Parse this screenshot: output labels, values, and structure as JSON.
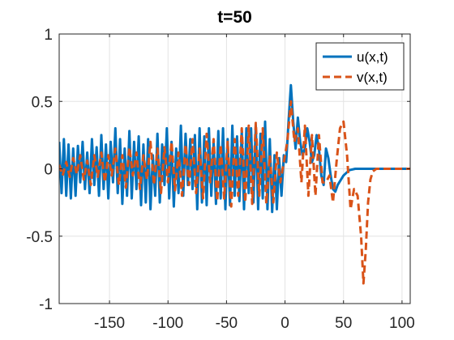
{
  "chart_data": {
    "type": "line",
    "title": "t=50",
    "xlabel": "",
    "ylabel": "",
    "xlim": [
      -193,
      107
    ],
    "ylim": [
      -1,
      1
    ],
    "x_ticks": [
      -150,
      -100,
      -50,
      0,
      50,
      100
    ],
    "x_tick_labels": [
      "-150",
      "-100",
      "-50",
      "0",
      "50",
      "100"
    ],
    "y_ticks": [
      1,
      0.5,
      0,
      -0.5,
      -1
    ],
    "y_tick_labels": [
      "1",
      "0.5",
      "0",
      "-0.5",
      "-1"
    ],
    "grid": true,
    "legend_position": "top-right",
    "series": [
      {
        "name": "u(x,t)",
        "color": "#0072BD",
        "style": "solid",
        "x": [
          -193,
          -191,
          -189,
          -187,
          -185,
          -183,
          -181,
          -179,
          -177,
          -175,
          -173,
          -171,
          -169,
          -167,
          -165,
          -163,
          -161,
          -159,
          -157,
          -155,
          -153,
          -151,
          -149,
          -147,
          -145,
          -143,
          -141,
          -139,
          -137,
          -135,
          -133,
          -131,
          -129,
          -127,
          -125,
          -123,
          -121,
          -119,
          -117,
          -115,
          -113,
          -111,
          -109,
          -107,
          -105,
          -103,
          -101,
          -99,
          -97,
          -95,
          -93,
          -91,
          -89,
          -87,
          -85,
          -83,
          -81,
          -79,
          -77,
          -75,
          -73,
          -71,
          -69,
          -67,
          -65,
          -63,
          -61,
          -59,
          -57,
          -55,
          -53,
          -51,
          -49,
          -47,
          -45,
          -43,
          -41,
          -39,
          -37,
          -35,
          -33,
          -31,
          -29,
          -27,
          -25,
          -23,
          -21,
          -19,
          -17,
          -15,
          -13,
          -11,
          -9,
          -7,
          -5,
          -3,
          -1,
          1,
          3,
          5,
          7,
          9,
          11,
          13,
          15,
          17,
          19,
          21,
          23,
          25,
          27,
          29,
          31,
          33,
          35,
          37,
          39,
          41,
          43,
          45,
          50,
          55,
          60,
          65,
          70,
          80,
          90,
          100,
          107
        ],
        "y": [
          0.2,
          -0.18,
          0.22,
          -0.2,
          0.18,
          -0.22,
          0.15,
          -0.2,
          0.17,
          -0.1,
          0.2,
          -0.15,
          0.12,
          -0.18,
          0.22,
          -0.12,
          0.16,
          -0.2,
          0.25,
          -0.15,
          0.18,
          -0.22,
          0.2,
          -0.1,
          0.3,
          -0.18,
          0.22,
          -0.26,
          0.15,
          -0.2,
          0.28,
          -0.22,
          0.2,
          -0.15,
          0.24,
          -0.27,
          0.18,
          -0.25,
          0.22,
          -0.3,
          0.1,
          -0.2,
          0.26,
          -0.25,
          0.18,
          -0.12,
          0.3,
          -0.22,
          0.2,
          -0.28,
          0.15,
          -0.18,
          0.32,
          -0.2,
          0.26,
          -0.12,
          0.22,
          -0.15,
          0.25,
          -0.3,
          0.3,
          -0.25,
          0.24,
          -0.27,
          0.3,
          -0.2,
          0.2,
          -0.26,
          0.28,
          -0.22,
          0.3,
          -0.3,
          0.22,
          -0.27,
          0.32,
          -0.2,
          0.24,
          -0.24,
          0.28,
          -0.3,
          0.3,
          -0.18,
          0.3,
          -0.25,
          0.32,
          -0.3,
          0.26,
          -0.22,
          0.35,
          -0.3,
          0.22,
          -0.32,
          0.1,
          -0.3,
          0.08,
          -0.2,
          0.1,
          0.05,
          0.35,
          0.62,
          0.35,
          0.15,
          0.38,
          0.2,
          0.1,
          0.15,
          0.3,
          0.2,
          0.05,
          0.1,
          0.25,
          0.15,
          -0.05,
          -0.12,
          0.15,
          0.08,
          -0.05,
          -0.15,
          -0.17,
          -0.12,
          -0.05,
          -0.01,
          0,
          0,
          0,
          0,
          0,
          0,
          0
        ]
      },
      {
        "name": "v(x,t)",
        "color": "#D95319",
        "style": "dashed",
        "x": [
          -193,
          -190,
          -187,
          -184,
          -181,
          -178,
          -175,
          -172,
          -169,
          -166,
          -163,
          -160,
          -157,
          -154,
          -151,
          -148,
          -145,
          -142,
          -139,
          -136,
          -133,
          -130,
          -127,
          -124,
          -121,
          -118,
          -115,
          -112,
          -109,
          -106,
          -103,
          -100,
          -97,
          -94,
          -91,
          -88,
          -85,
          -82,
          -79,
          -76,
          -73,
          -70,
          -67,
          -64,
          -61,
          -58,
          -55,
          -52,
          -49,
          -46,
          -43,
          -40,
          -37,
          -34,
          -31,
          -28,
          -25,
          -22,
          -19,
          -16,
          -13,
          -10,
          -7,
          -4,
          -1,
          2,
          5,
          8,
          11,
          14,
          17,
          20,
          23,
          26,
          29,
          32,
          35,
          38,
          41,
          44,
          47,
          50,
          53,
          56,
          59,
          62,
          65,
          67,
          69,
          71,
          73,
          75,
          78,
          82,
          90,
          100,
          107
        ],
        "y": [
          0.03,
          -0.05,
          0.05,
          -0.06,
          0.08,
          -0.04,
          0.1,
          -0.08,
          0.06,
          -0.12,
          0.1,
          -0.06,
          0.12,
          -0.1,
          0.1,
          -0.05,
          0.15,
          -0.12,
          0.1,
          -0.14,
          0.16,
          -0.05,
          0.12,
          -0.15,
          0.1,
          -0.08,
          0.2,
          -0.12,
          0.15,
          -0.18,
          0.16,
          -0.1,
          0.2,
          -0.16,
          0.12,
          -0.2,
          0.18,
          -0.12,
          0.22,
          -0.18,
          0.15,
          -0.22,
          0.26,
          -0.1,
          0.22,
          -0.24,
          0.18,
          -0.22,
          0.2,
          -0.28,
          0.22,
          -0.2,
          0.3,
          -0.25,
          0.32,
          -0.26,
          0.34,
          -0.2,
          0.3,
          -0.26,
          0.1,
          -0.25,
          0.12,
          -0.1,
          0.05,
          0.2,
          0.5,
          0.2,
          0.3,
          -0.1,
          0.32,
          -0.2,
          0.25,
          -0.2,
          0.25,
          -0.1,
          -0.1,
          -0.05,
          -0.25,
          0.05,
          0.3,
          0.35,
          0.1,
          -0.3,
          -0.15,
          -0.2,
          -0.5,
          -0.85,
          -0.6,
          -0.25,
          -0.08,
          -0.02,
          0,
          0,
          0,
          0,
          0
        ]
      }
    ]
  }
}
